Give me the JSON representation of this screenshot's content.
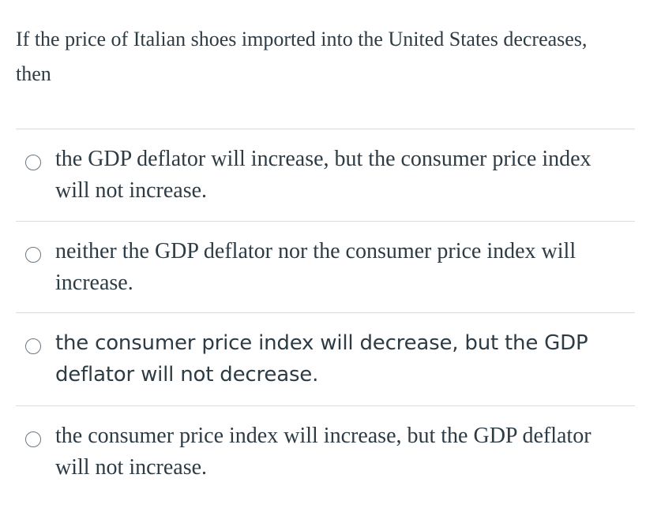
{
  "question": {
    "text": "If the price of Italian shoes imported into the United States decreases, then"
  },
  "answers": [
    {
      "text": "the GDP deflator will increase, but the consumer price index will not increase."
    },
    {
      "text": "neither the GDP deflator nor the consumer price index will increase."
    },
    {
      "text": "the consumer price index will decrease, but the GDP deflator will not decrease."
    },
    {
      "text": "the consumer price index will increase, but the GDP deflator will not increase."
    }
  ]
}
